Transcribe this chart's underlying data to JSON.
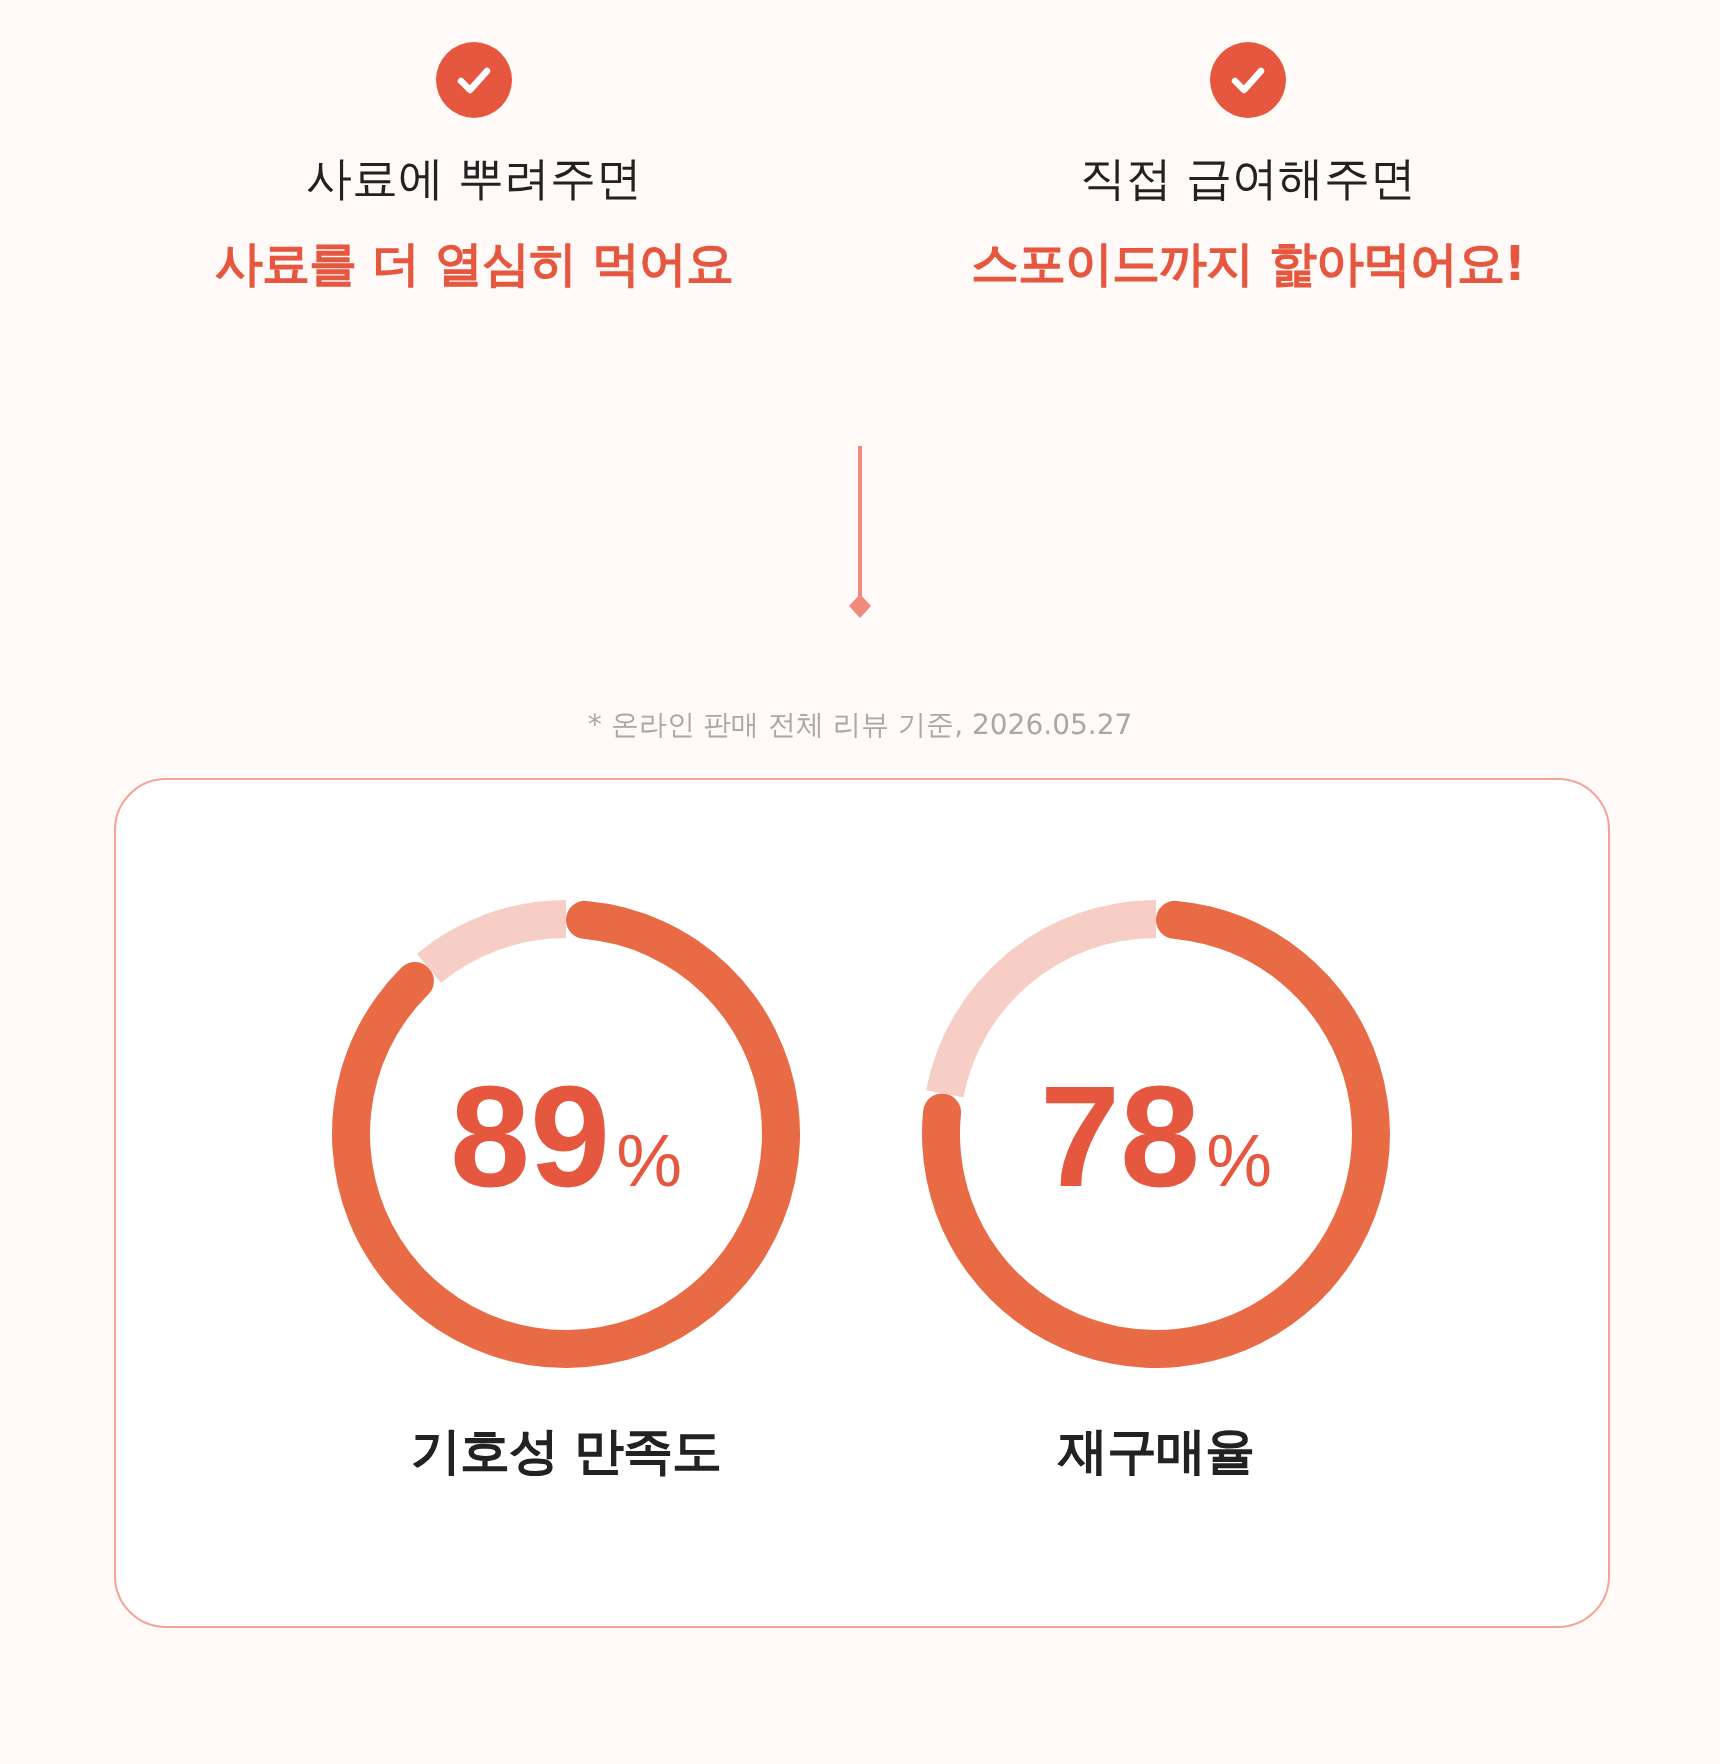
{
  "chart_data": [
    {
      "type": "other",
      "annotations": [
        "사료에 뿌려주면",
        "사료를 더 열심히 먹어요",
        "직접 급여해주면",
        "스포이드까지 핥아먹어요!",
        "* 온라인 판매 전체 리뷰 기준, 2026.05.27"
      ]
    },
    {
      "type": "donut",
      "title": "기호성 만족도",
      "categories": [
        null,
        null
      ],
      "values": [
        89,
        11
      ],
      "colors": [
        "#e86b45",
        "#f6cec6"
      ],
      "value_labels": [
        "89%",
        null
      ]
    },
    {
      "type": "donut",
      "title": "재구매율",
      "categories": [
        null,
        null
      ],
      "values": [
        78,
        22
      ],
      "colors": [
        "#e86b45",
        "#f6cec6"
      ],
      "value_labels": [
        "78%",
        null
      ]
    }
  ]
}
